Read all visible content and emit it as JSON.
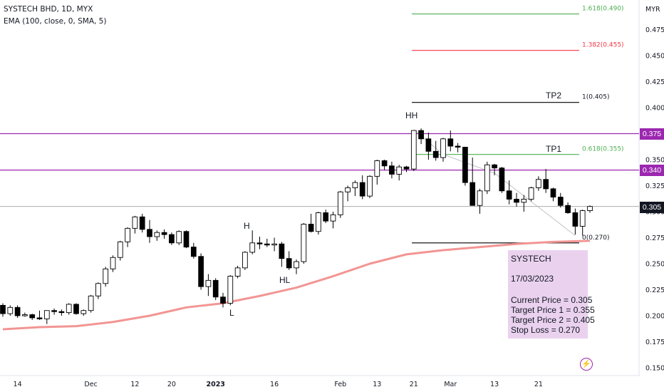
{
  "header": {
    "symbol_line": "SYSTECH BHD, 1D, MYX",
    "indicator_line": "EMA (100, close, 0, SMA, 5)"
  },
  "currency": "MYR",
  "annotations": {
    "hh": "HH",
    "h": "H",
    "hl": "HL",
    "l": "L",
    "tp2": "TP2",
    "tp1": "TP1"
  },
  "fib_labels": {
    "f1618": "1.618(0.490)",
    "f1382": "1.382(0.455)",
    "f1": "1(0.405)",
    "f0618": "0.618(0.355)",
    "f0": "0(0.270)"
  },
  "info_box": {
    "name": "SYSTECH",
    "date": "17/03/2023",
    "current": "Current Price = 0.305",
    "tp1": "Target Price 1 = 0.355",
    "tp2": "Target Price 2 = 0.405",
    "sl": "Stop Loss = 0.270"
  },
  "price_tags": {
    "r1": "0.375",
    "r2": "0.340",
    "last": "0.305"
  },
  "colors": {
    "up": "#ffffff",
    "down": "#000000",
    "ema": "#f29593",
    "resistance": "#9c27b0",
    "fib_green": "#4caf50",
    "fib_red": "#f23645",
    "fib_black": "#000000",
    "box": "#ce93d8"
  },
  "chart_data": {
    "type": "candlestick",
    "y_axis": {
      "ticks": [
        "0.475",
        "0.450",
        "0.425",
        "0.400",
        "0.375",
        "0.350",
        "0.325",
        "0.300",
        "0.275",
        "0.250",
        "0.225",
        "0.200",
        "0.175",
        "0.150"
      ],
      "min": 0.145,
      "max": 0.495
    },
    "x_axis": {
      "ticks": [
        {
          "index": 2,
          "label": "14"
        },
        {
          "index": 12,
          "label": "Dec"
        },
        {
          "index": 18,
          "label": "12"
        },
        {
          "index": 23,
          "label": "20"
        },
        {
          "index": 29,
          "label": "2023"
        },
        {
          "index": 37,
          "label": "16"
        },
        {
          "index": 46,
          "label": "Feb"
        },
        {
          "index": 51,
          "label": "13"
        },
        {
          "index": 56,
          "label": "21"
        },
        {
          "index": 61,
          "label": "Mar"
        },
        {
          "index": 67,
          "label": "13"
        },
        {
          "index": 73,
          "label": "21"
        }
      ]
    },
    "candles": [
      [
        0.21,
        0.212,
        0.199,
        0.202
      ],
      [
        0.202,
        0.21,
        0.2,
        0.208
      ],
      [
        0.208,
        0.21,
        0.198,
        0.2
      ],
      [
        0.2,
        0.203,
        0.199,
        0.201
      ],
      [
        0.201,
        0.202,
        0.196,
        0.198
      ],
      [
        0.198,
        0.205,
        0.196,
        0.197
      ],
      [
        0.197,
        0.205,
        0.192,
        0.205
      ],
      [
        0.205,
        0.207,
        0.201,
        0.204
      ],
      [
        0.204,
        0.206,
        0.2,
        0.203
      ],
      [
        0.203,
        0.212,
        0.201,
        0.211
      ],
      [
        0.211,
        0.212,
        0.201,
        0.202
      ],
      [
        0.202,
        0.206,
        0.2,
        0.205
      ],
      [
        0.205,
        0.22,
        0.203,
        0.219
      ],
      [
        0.219,
        0.232,
        0.216,
        0.231
      ],
      [
        0.231,
        0.247,
        0.228,
        0.245
      ],
      [
        0.245,
        0.258,
        0.242,
        0.256
      ],
      [
        0.256,
        0.272,
        0.253,
        0.271
      ],
      [
        0.271,
        0.285,
        0.266,
        0.284
      ],
      [
        0.284,
        0.296,
        0.279,
        0.295
      ],
      [
        0.295,
        0.298,
        0.28,
        0.283
      ],
      [
        0.283,
        0.292,
        0.27,
        0.276
      ],
      [
        0.276,
        0.282,
        0.272,
        0.28
      ],
      [
        0.28,
        0.283,
        0.274,
        0.278
      ],
      [
        0.278,
        0.28,
        0.268,
        0.27
      ],
      [
        0.27,
        0.282,
        0.268,
        0.281
      ],
      [
        0.281,
        0.282,
        0.265,
        0.266
      ],
      [
        0.266,
        0.27,
        0.255,
        0.257
      ],
      [
        0.257,
        0.26,
        0.225,
        0.228
      ],
      [
        0.228,
        0.24,
        0.219,
        0.234
      ],
      [
        0.234,
        0.236,
        0.215,
        0.218
      ],
      [
        0.218,
        0.222,
        0.208,
        0.212
      ],
      [
        0.212,
        0.239,
        0.21,
        0.238
      ],
      [
        0.238,
        0.248,
        0.236,
        0.246
      ],
      [
        0.246,
        0.262,
        0.244,
        0.261
      ],
      [
        0.261,
        0.282,
        0.259,
        0.27
      ],
      [
        0.27,
        0.276,
        0.264,
        0.269
      ],
      [
        0.269,
        0.274,
        0.266,
        0.268
      ],
      [
        0.268,
        0.275,
        0.262,
        0.269
      ],
      [
        0.269,
        0.271,
        0.247,
        0.255
      ],
      [
        0.255,
        0.262,
        0.244,
        0.246
      ],
      [
        0.246,
        0.254,
        0.24,
        0.252
      ],
      [
        0.252,
        0.289,
        0.25,
        0.288
      ],
      [
        0.288,
        0.298,
        0.28,
        0.281
      ],
      [
        0.281,
        0.3,
        0.278,
        0.299
      ],
      [
        0.299,
        0.302,
        0.289,
        0.291
      ],
      [
        0.291,
        0.3,
        0.284,
        0.297
      ],
      [
        0.297,
        0.32,
        0.294,
        0.319
      ],
      [
        0.319,
        0.325,
        0.31,
        0.323
      ],
      [
        0.323,
        0.33,
        0.315,
        0.328
      ],
      [
        0.328,
        0.335,
        0.312,
        0.315
      ],
      [
        0.315,
        0.335,
        0.313,
        0.334
      ],
      [
        0.334,
        0.35,
        0.326,
        0.349
      ],
      [
        0.349,
        0.35,
        0.34,
        0.344
      ],
      [
        0.344,
        0.348,
        0.332,
        0.336
      ],
      [
        0.336,
        0.345,
        0.33,
        0.343
      ],
      [
        0.343,
        0.344,
        0.338,
        0.341
      ],
      [
        0.341,
        0.378,
        0.339,
        0.378
      ],
      [
        0.378,
        0.38,
        0.365,
        0.37
      ],
      [
        0.37,
        0.376,
        0.35,
        0.358
      ],
      [
        0.358,
        0.368,
        0.349,
        0.352
      ],
      [
        0.352,
        0.371,
        0.348,
        0.37
      ],
      [
        0.37,
        0.378,
        0.358,
        0.363
      ],
      [
        0.363,
        0.366,
        0.357,
        0.362
      ],
      [
        0.362,
        0.362,
        0.325,
        0.328
      ],
      [
        0.328,
        0.352,
        0.306,
        0.306
      ],
      [
        0.306,
        0.322,
        0.298,
        0.32
      ],
      [
        0.32,
        0.348,
        0.317,
        0.345
      ],
      [
        0.345,
        0.346,
        0.335,
        0.342
      ],
      [
        0.342,
        0.343,
        0.318,
        0.32
      ],
      [
        0.32,
        0.33,
        0.307,
        0.312
      ],
      [
        0.312,
        0.318,
        0.305,
        0.309
      ],
      [
        0.309,
        0.316,
        0.3,
        0.312
      ],
      [
        0.312,
        0.324,
        0.31,
        0.323
      ],
      [
        0.323,
        0.334,
        0.32,
        0.331
      ],
      [
        0.331,
        0.341,
        0.318,
        0.322
      ],
      [
        0.322,
        0.323,
        0.31,
        0.314
      ],
      [
        0.314,
        0.318,
        0.304,
        0.306
      ],
      [
        0.306,
        0.309,
        0.298,
        0.299
      ],
      [
        0.299,
        0.303,
        0.278,
        0.286
      ],
      [
        0.286,
        0.302,
        0.277,
        0.301
      ],
      [
        0.301,
        0.306,
        0.299,
        0.305
      ]
    ],
    "ema_100": [
      [
        0,
        0.187
      ],
      [
        5,
        0.189
      ],
      [
        10,
        0.19
      ],
      [
        15,
        0.194
      ],
      [
        20,
        0.2
      ],
      [
        25,
        0.208
      ],
      [
        30,
        0.212
      ],
      [
        35,
        0.219
      ],
      [
        40,
        0.227
      ],
      [
        45,
        0.238
      ],
      [
        50,
        0.25
      ],
      [
        55,
        0.259
      ],
      [
        60,
        0.263
      ],
      [
        65,
        0.266
      ],
      [
        70,
        0.269
      ],
      [
        75,
        0.271
      ],
      [
        80,
        0.272
      ]
    ],
    "horizontal_lines": [
      {
        "price": 0.375,
        "color": "resistance"
      },
      {
        "price": 0.34,
        "color": "resistance"
      },
      {
        "price": 0.305,
        "color": "last"
      }
    ],
    "fibonacci": [
      {
        "level": "1.618",
        "price": 0.49,
        "color": "fib_green"
      },
      {
        "level": "1.382",
        "price": 0.455,
        "color": "fib_red"
      },
      {
        "level": "1",
        "price": 0.405,
        "color": "fib_black"
      },
      {
        "level": "0.618",
        "price": 0.355,
        "color": "fib_green"
      },
      {
        "level": "0",
        "price": 0.27,
        "color": "fib_black"
      }
    ],
    "trend_path": [
      [
        56,
        0.379
      ],
      [
        60,
        0.355
      ],
      [
        67,
        0.337
      ],
      [
        78,
        0.277
      ]
    ]
  }
}
